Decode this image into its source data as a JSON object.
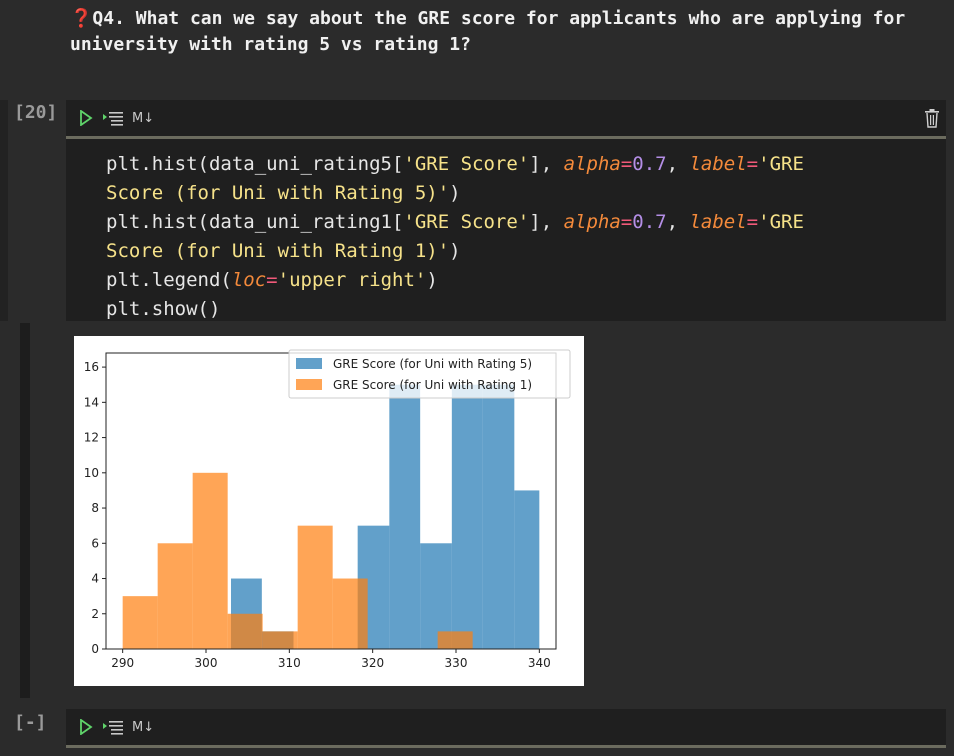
{
  "markdown": {
    "marker": "❓",
    "question": "Q4. What can we say about the GRE score for applicants who are applying for university with rating 5 vs rating 1?"
  },
  "cell1": {
    "prompt": "[20]",
    "md_label": "M↓",
    "code_lines": [
      [
        [
          "t",
          "plt.hist(data_uni_rating5["
        ],
        [
          "s",
          "'GRE Score'"
        ],
        [
          "t",
          "], "
        ],
        [
          "k",
          "alpha"
        ],
        [
          "e",
          "="
        ],
        [
          "n",
          "0.7"
        ],
        [
          "t",
          ", "
        ],
        [
          "k",
          "label"
        ],
        [
          "e",
          "="
        ],
        [
          "s",
          "'GRE"
        ]
      ],
      [
        [
          "s",
          "Score (for Uni with Rating 5)'"
        ],
        [
          "t",
          ")"
        ]
      ],
      [
        [
          "t",
          "plt.hist(data_uni_rating1["
        ],
        [
          "s",
          "'GRE Score'"
        ],
        [
          "t",
          "], "
        ],
        [
          "k",
          "alpha"
        ],
        [
          "e",
          "="
        ],
        [
          "n",
          "0.7"
        ],
        [
          "t",
          ", "
        ],
        [
          "k",
          "label"
        ],
        [
          "e",
          "="
        ],
        [
          "s",
          "'GRE"
        ]
      ],
      [
        [
          "s",
          "Score (for Uni with Rating 1)'"
        ],
        [
          "t",
          ")"
        ]
      ],
      [
        [
          "t",
          "plt.legend("
        ],
        [
          "k",
          "loc"
        ],
        [
          "e",
          "="
        ],
        [
          "s",
          "'upper right'"
        ],
        [
          "t",
          ")"
        ]
      ],
      [
        [
          "t",
          "plt.show()"
        ]
      ]
    ]
  },
  "cell2": {
    "prompt": "[-]",
    "md_label": "M↓"
  },
  "colors": {
    "series1": "#1f77b4",
    "series2": "#ff7f0e"
  },
  "chart_data": {
    "type": "bar",
    "title": "",
    "xlabel": "",
    "ylabel": "",
    "xlim": [
      288,
      342
    ],
    "ylim": [
      0,
      16.8
    ],
    "xticks": [
      290,
      300,
      310,
      320,
      330,
      340
    ],
    "yticks": [
      0,
      2,
      4,
      6,
      8,
      10,
      12,
      14,
      16
    ],
    "legend_position": "upper right",
    "grid": false,
    "alpha": 0.7,
    "series": [
      {
        "name": "GRE Score (for Uni with Rating 5)",
        "bins": [
          {
            "x0": 303.0,
            "x1": 306.7,
            "count": 4
          },
          {
            "x0": 306.7,
            "x1": 310.5,
            "count": 1
          },
          {
            "x0": 318.2,
            "x1": 322.0,
            "count": 7
          },
          {
            "x0": 322.0,
            "x1": 325.7,
            "count": 15
          },
          {
            "x0": 325.7,
            "x1": 329.5,
            "count": 6
          },
          {
            "x0": 329.5,
            "x1": 333.2,
            "count": 15
          },
          {
            "x0": 333.2,
            "x1": 337.0,
            "count": 15
          },
          {
            "x0": 337.0,
            "x1": 340.0,
            "count": 9
          }
        ]
      },
      {
        "name": "GRE Score (for Uni with Rating 1)",
        "bins": [
          {
            "x0": 290.0,
            "x1": 294.2,
            "count": 3
          },
          {
            "x0": 294.2,
            "x1": 298.4,
            "count": 6
          },
          {
            "x0": 298.4,
            "x1": 302.6,
            "count": 10
          },
          {
            "x0": 302.6,
            "x1": 306.8,
            "count": 2
          },
          {
            "x0": 306.8,
            "x1": 311.0,
            "count": 1
          },
          {
            "x0": 311.0,
            "x1": 315.2,
            "count": 7
          },
          {
            "x0": 315.2,
            "x1": 319.4,
            "count": 4
          },
          {
            "x0": 327.8,
            "x1": 332.0,
            "count": 1
          }
        ]
      }
    ]
  }
}
